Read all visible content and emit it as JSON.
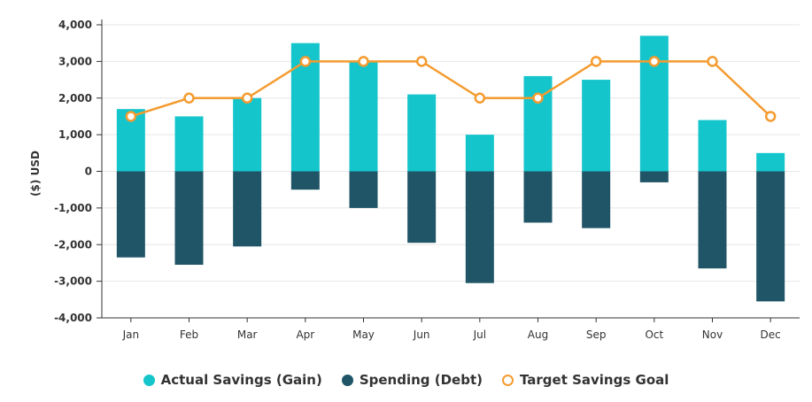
{
  "chart_data": {
    "type": "bar",
    "ylabel": "($) USD",
    "ylim": [
      -4000,
      4000
    ],
    "yticks": [
      4000,
      3000,
      2000,
      1000,
      0,
      -1000,
      -2000,
      -3000,
      -4000
    ],
    "ytick_labels": [
      "4,000",
      "3,000",
      "2,000",
      "1,000",
      "0",
      "-1,000",
      "-2,000",
      "-3,000",
      "-4,000"
    ],
    "grid": true,
    "legend_position": "bottom",
    "categories": [
      "Jan",
      "Feb",
      "Mar",
      "Apr",
      "May",
      "Jun",
      "Jul",
      "Aug",
      "Sep",
      "Oct",
      "Nov",
      "Dec"
    ],
    "series": [
      {
        "name": "Actual Savings (Gain)",
        "kind": "bar",
        "color": "#14c5cc",
        "values": [
          1700,
          1500,
          2000,
          3500,
          3000,
          2100,
          1000,
          2600,
          2500,
          3700,
          1400,
          500
        ]
      },
      {
        "name": "Spending (Debt)",
        "kind": "bar",
        "color": "#1f5566",
        "values": [
          -2350,
          -2550,
          -2050,
          -500,
          -1000,
          -1950,
          -3050,
          -1400,
          -1550,
          -300,
          -2650,
          -3550
        ]
      },
      {
        "name": "Target Savings Goal",
        "kind": "line",
        "color": "#f49b2f",
        "values": [
          1500,
          2000,
          2000,
          3000,
          3000,
          3000,
          2000,
          2000,
          3000,
          3000,
          3000,
          1500
        ]
      }
    ]
  }
}
